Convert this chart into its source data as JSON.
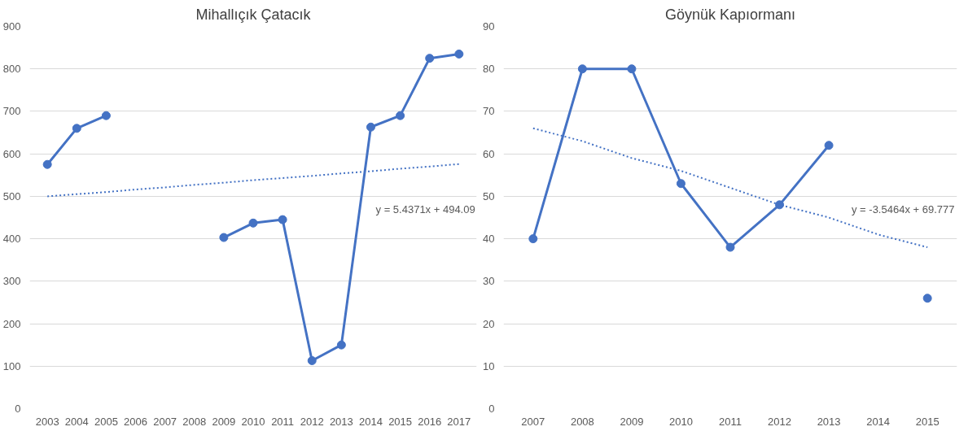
{
  "chart_data": [
    {
      "type": "line",
      "title": "Mihallıçık Çatacık",
      "categories": [
        "2003",
        "2004",
        "2005",
        "2006",
        "2007",
        "2008",
        "2009",
        "2010",
        "2011",
        "2012",
        "2013",
        "2014",
        "2015",
        "2016",
        "2017"
      ],
      "ylim": [
        0,
        900
      ],
      "yticks": [
        0,
        100,
        200,
        300,
        400,
        500,
        600,
        700,
        800,
        900
      ],
      "grid": "y",
      "series": [
        {
          "color": "#4472c4",
          "marker": "circle",
          "line_style": "solid",
          "values": [
            575,
            660,
            690,
            null,
            null,
            null,
            403,
            437,
            445,
            113,
            150,
            663,
            690,
            825,
            835
          ]
        },
        {
          "color": "#4472c4",
          "marker": "none",
          "line_style": "dotted",
          "values": [
            500,
            505,
            510,
            516,
            521,
            527,
            532,
            538,
            543,
            548,
            554,
            559,
            565,
            570,
            576
          ]
        }
      ],
      "annotations": [
        "y = 5.4371x + 494.09"
      ]
    },
    {
      "type": "line",
      "title": "Göynük Kapıormanı",
      "categories": [
        "2007",
        "2008",
        "2009",
        "2010",
        "2011",
        "2012",
        "2013",
        "2014",
        "2015"
      ],
      "ylim": [
        0,
        90
      ],
      "yticks": [
        0,
        10,
        20,
        30,
        40,
        50,
        60,
        70,
        80,
        90
      ],
      "grid": "y",
      "series": [
        {
          "color": "#4472c4",
          "marker": "circle",
          "line_style": "solid",
          "values": [
            40,
            80,
            80,
            53,
            38,
            48,
            62,
            null,
            26
          ]
        },
        {
          "color": "#4472c4",
          "marker": "none",
          "line_style": "dotted",
          "values": [
            66,
            63,
            59,
            56,
            52,
            48,
            45,
            41,
            38
          ]
        }
      ],
      "annotations": [
        "y = -3.5464x + 69.777"
      ]
    }
  ]
}
